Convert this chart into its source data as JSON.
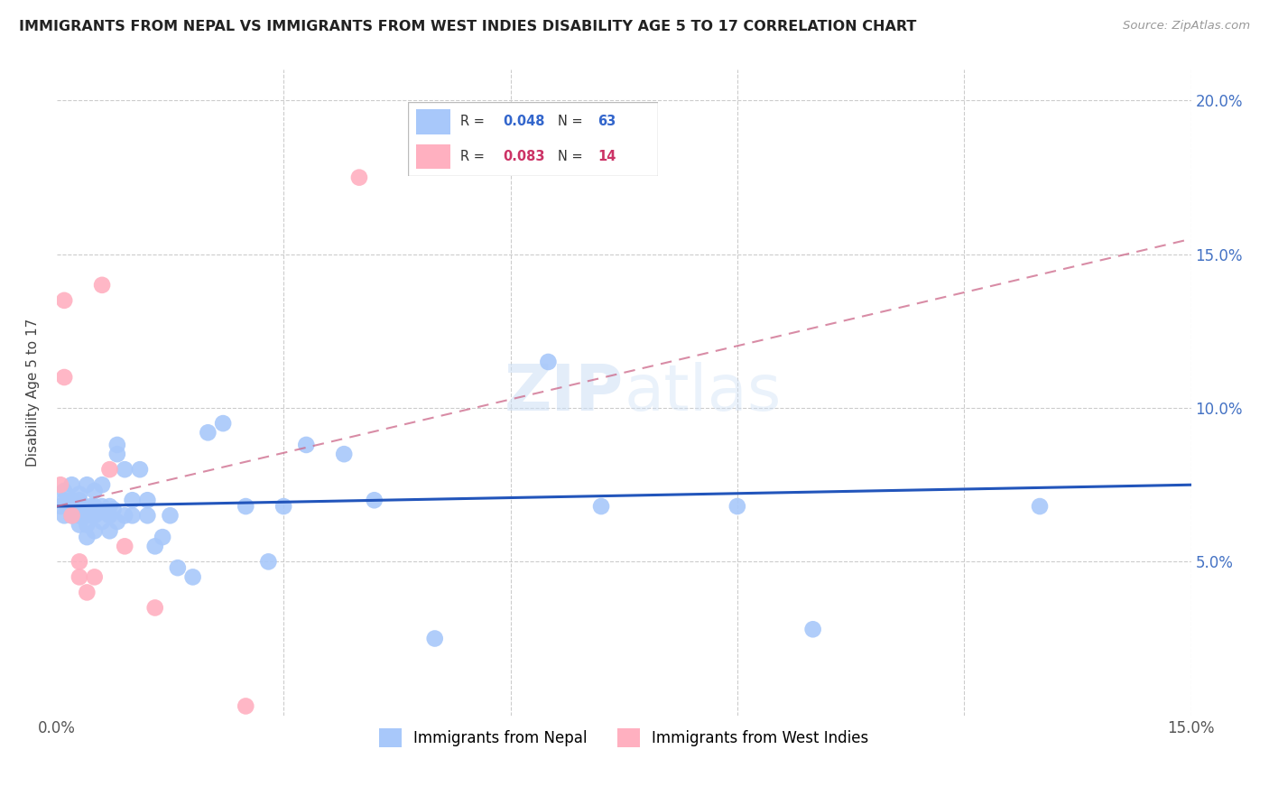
{
  "title": "IMMIGRANTS FROM NEPAL VS IMMIGRANTS FROM WEST INDIES DISABILITY AGE 5 TO 17 CORRELATION CHART",
  "source": "Source: ZipAtlas.com",
  "ylabel": "Disability Age 5 to 17",
  "xlim": [
    0.0,
    0.15
  ],
  "ylim": [
    0.0,
    0.21
  ],
  "nepal_R": 0.048,
  "nepal_N": 63,
  "westindies_R": 0.083,
  "westindies_N": 14,
  "nepal_color": "#a8c8fa",
  "westindies_color": "#ffb0c0",
  "nepal_line_color": "#2255bb",
  "westindies_line_color": "#cc6688",
  "grid_color": "#cccccc",
  "nepal_x": [
    0.0005,
    0.001,
    0.001,
    0.001,
    0.0015,
    0.002,
    0.002,
    0.002,
    0.002,
    0.0025,
    0.003,
    0.003,
    0.003,
    0.003,
    0.003,
    0.0035,
    0.004,
    0.004,
    0.004,
    0.004,
    0.0045,
    0.005,
    0.005,
    0.005,
    0.005,
    0.0055,
    0.006,
    0.006,
    0.006,
    0.0065,
    0.007,
    0.007,
    0.007,
    0.0075,
    0.008,
    0.008,
    0.008,
    0.009,
    0.009,
    0.01,
    0.01,
    0.011,
    0.012,
    0.012,
    0.013,
    0.014,
    0.015,
    0.016,
    0.018,
    0.02,
    0.022,
    0.025,
    0.028,
    0.03,
    0.033,
    0.038,
    0.042,
    0.05,
    0.065,
    0.072,
    0.09,
    0.1,
    0.13
  ],
  "nepal_y": [
    0.068,
    0.065,
    0.07,
    0.073,
    0.068,
    0.065,
    0.068,
    0.07,
    0.075,
    0.066,
    0.062,
    0.065,
    0.067,
    0.07,
    0.072,
    0.068,
    0.058,
    0.062,
    0.065,
    0.075,
    0.068,
    0.06,
    0.065,
    0.068,
    0.073,
    0.066,
    0.063,
    0.068,
    0.075,
    0.066,
    0.06,
    0.065,
    0.068,
    0.067,
    0.085,
    0.088,
    0.063,
    0.065,
    0.08,
    0.07,
    0.065,
    0.08,
    0.07,
    0.065,
    0.055,
    0.058,
    0.065,
    0.048,
    0.045,
    0.092,
    0.095,
    0.068,
    0.05,
    0.068,
    0.088,
    0.085,
    0.07,
    0.025,
    0.115,
    0.068,
    0.068,
    0.028,
    0.068
  ],
  "westindies_x": [
    0.0005,
    0.001,
    0.001,
    0.002,
    0.003,
    0.003,
    0.004,
    0.005,
    0.006,
    0.007,
    0.009,
    0.013,
    0.025,
    0.04
  ],
  "westindies_y": [
    0.075,
    0.11,
    0.135,
    0.065,
    0.05,
    0.045,
    0.04,
    0.045,
    0.14,
    0.08,
    0.055,
    0.035,
    0.003,
    0.175
  ],
  "nepal_trend_x": [
    0.0,
    0.15
  ],
  "nepal_trend_y": [
    0.068,
    0.075
  ],
  "westindies_trend_x": [
    0.0,
    0.15
  ],
  "westindies_trend_y": [
    0.068,
    0.155
  ]
}
